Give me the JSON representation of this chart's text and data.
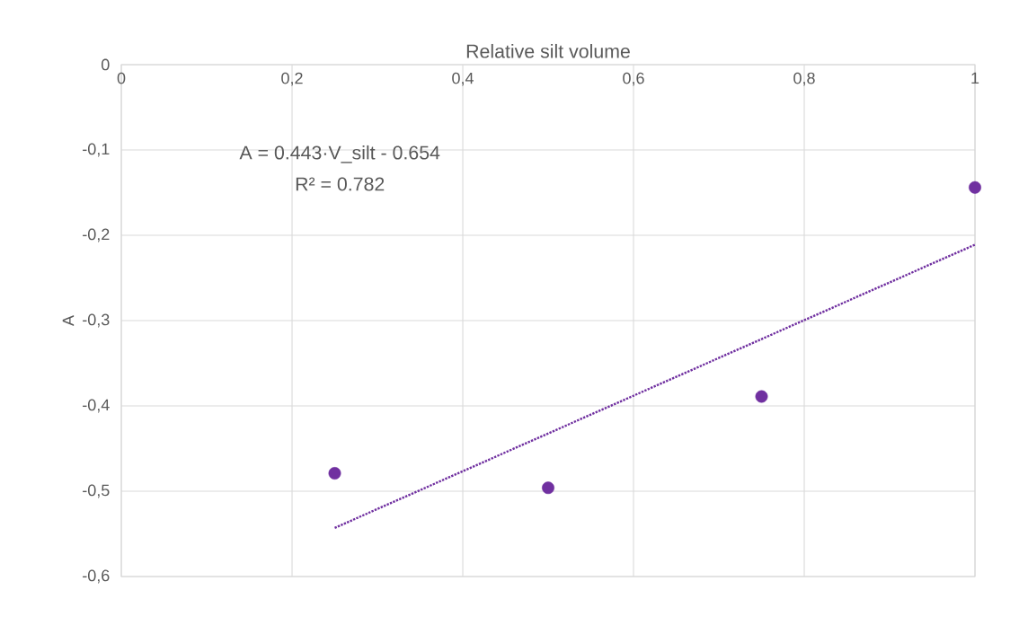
{
  "chart_data": {
    "type": "scatter",
    "xlabel": "Relative silt volume",
    "ylabel": "A",
    "x": [
      0.25,
      0.5,
      0.75,
      1
    ],
    "series": [
      {
        "color": "#7030a0",
        "marker": "circle",
        "values": [
          -0.479,
          -0.496,
          -0.389,
          -0.144
        ]
      },
      {
        "type": "line",
        "color": "#7030a0",
        "line_style": "dotted",
        "marker": "none",
        "x": [
          0.25,
          1
        ],
        "values": [
          -0.543,
          -0.211
        ]
      }
    ],
    "xlim": [
      0,
      1
    ],
    "ylim": [
      -0.6,
      0
    ],
    "xticks": [
      0,
      {
        "value": 0.2,
        "label": "0,2"
      },
      {
        "value": 0.4,
        "label": "0,4"
      },
      {
        "value": 0.6,
        "label": "0,6"
      },
      {
        "value": 0.8,
        "label": "0,8"
      },
      1
    ],
    "yticks": [
      {
        "value": -0.6,
        "label": "-0,6"
      },
      {
        "value": -0.5,
        "label": "-0,5"
      },
      {
        "value": -0.4,
        "label": "-0,4"
      },
      {
        "value": -0.3,
        "label": "-0,3"
      },
      {
        "value": -0.2,
        "label": "-0,2"
      },
      {
        "value": -0.1,
        "label": "-0,1"
      },
      0
    ],
    "grid": true,
    "annotations": [
      "A = 0.443·V_silt - 0.654",
      "R² = 0.782"
    ]
  }
}
